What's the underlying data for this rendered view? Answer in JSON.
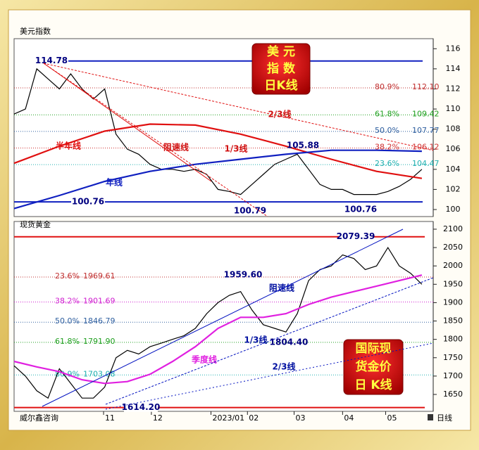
{
  "chart_data": [
    {
      "type": "line",
      "title": "美元指数",
      "badge": [
        "美 元",
        "指 数",
        "日K线"
      ],
      "xlim": [
        0,
        185
      ],
      "ylim": [
        99.3,
        117
      ],
      "yticks": [
        100,
        102,
        104,
        106,
        108,
        110,
        112,
        114,
        116
      ],
      "series": [
        {
          "color": "#000000",
          "x": [
            0,
            5,
            10,
            15,
            20,
            25,
            30,
            35,
            40,
            45,
            50,
            55,
            60,
            65,
            70,
            75,
            80,
            85,
            90,
            95,
            100,
            105,
            110,
            115,
            120,
            125,
            130,
            135,
            140,
            145,
            150,
            155,
            160,
            165,
            170,
            175,
            180
          ],
          "values": [
            109.5,
            110,
            114,
            113,
            112,
            113.5,
            112,
            111,
            112,
            107.5,
            106,
            105.5,
            104.5,
            104,
            104,
            103.8,
            104,
            103.5,
            102,
            101.8,
            101.5,
            102.5,
            103.5,
            104.5,
            105,
            105.5,
            104,
            102.5,
            102,
            102,
            101.5,
            101.5,
            101.5,
            101.8,
            102.3,
            103,
            104
          ]
        },
        {
          "name": "半年线",
          "color": "#e01010",
          "x": [
            0,
            20,
            40,
            60,
            80,
            100,
            120,
            140,
            160,
            180
          ],
          "values": [
            104.6,
            106.3,
            107.8,
            108.5,
            108.4,
            107.5,
            106.3,
            105,
            103.8,
            103.1
          ]
        },
        {
          "name": "年线",
          "color": "#1020c0",
          "x": [
            0,
            20,
            40,
            60,
            80,
            100,
            120,
            140,
            160,
            180
          ],
          "values": [
            100.1,
            101.4,
            102.8,
            103.8,
            104.5,
            105,
            105.5,
            105.9,
            105.9,
            105.8
          ]
        }
      ],
      "key_levels": [
        {
          "value": 114.78,
          "label": "114.78"
        },
        {
          "value": 100.76,
          "label": "100.76"
        }
      ],
      "key_color": "#1020c0",
      "points": [
        {
          "value": 100.79,
          "label": "100.79"
        },
        {
          "value": 105.88,
          "label": "105.88"
        },
        {
          "value": 100.76,
          "label": "100.76"
        }
      ],
      "fib_levels": [
        {
          "ratio": "80.9%",
          "value": 112.1,
          "label": "112.10",
          "color": "#c03030"
        },
        {
          "ratio": "61.8%",
          "value": 109.42,
          "label": "109.42",
          "color": "#20a020"
        },
        {
          "ratio": "50.0%",
          "value": 107.77,
          "label": "107.77",
          "color": "#3060a0"
        },
        {
          "ratio": "38.2%",
          "value": 106.12,
          "label": "106.12",
          "color": "#d03030"
        },
        {
          "ratio": "23.6%",
          "value": 104.47,
          "label": "104.47",
          "color": "#20b0b0"
        }
      ],
      "annotations": [
        {
          "text": "阻速线",
          "color": "#d01010"
        },
        {
          "text": "1/3线",
          "color": "#d01010"
        },
        {
          "text": "2/3线",
          "color": "#d01010"
        }
      ]
    },
    {
      "type": "line",
      "title": "现货黄金",
      "badge": [
        "国际现",
        "货金价",
        "日 K线"
      ],
      "xlim": [
        0,
        185
      ],
      "ylim": [
        1604,
        2121
      ],
      "yticks": [
        1650,
        1700,
        1750,
        1800,
        1850,
        1900,
        1950,
        2000,
        2050,
        2100
      ],
      "xticks": [
        {
          "value": 39.5,
          "label": "11"
        },
        {
          "value": 60.6,
          "label": "12"
        },
        {
          "value": 86.9,
          "label": "2023/01"
        },
        {
          "value": 103,
          "label": "02"
        },
        {
          "value": 123.6,
          "label": "03"
        },
        {
          "value": 145,
          "label": "04"
        },
        {
          "value": 164,
          "label": "05"
        }
      ],
      "series": [
        {
          "color": "#000000",
          "x": [
            0,
            5,
            10,
            15,
            20,
            25,
            30,
            35,
            40,
            45,
            50,
            55,
            60,
            65,
            70,
            75,
            80,
            85,
            90,
            95,
            100,
            105,
            110,
            115,
            120,
            125,
            130,
            135,
            140,
            145,
            150,
            155,
            160,
            165,
            170,
            175,
            180
          ],
          "values": [
            1728,
            1700,
            1660,
            1640,
            1720,
            1680,
            1640,
            1640,
            1670,
            1750,
            1770,
            1760,
            1780,
            1790,
            1800,
            1810,
            1830,
            1870,
            1900,
            1920,
            1930,
            1880,
            1840,
            1830,
            1820,
            1870,
            1960,
            1990,
            2000,
            2030,
            2020,
            1990,
            2000,
            2050,
            2000,
            1980,
            1950
          ]
        },
        {
          "name": "季度线",
          "color": "#e020e0",
          "x": [
            0,
            10,
            20,
            30,
            40,
            50,
            60,
            70,
            80,
            90,
            100,
            110,
            120,
            130,
            140,
            150,
            160,
            170,
            180
          ],
          "values": [
            1740,
            1725,
            1712,
            1690,
            1680,
            1685,
            1705,
            1740,
            1780,
            1830,
            1860,
            1860,
            1870,
            1895,
            1915,
            1930,
            1945,
            1960,
            1975
          ]
        }
      ],
      "key_levels": [
        {
          "value": 2079.39,
          "label": "2079.39"
        },
        {
          "value": 1614.2,
          "label": "1614.20"
        }
      ],
      "key_color": "#e01010",
      "points": [
        {
          "value": 1959.6,
          "label": "1959.60"
        },
        {
          "value": 1804.4,
          "label": "1804.40"
        }
      ],
      "fib_levels": [
        {
          "ratio": "23.6%",
          "value": 1969.61,
          "label": "1969.61",
          "color": "#c03030"
        },
        {
          "ratio": "38.2%",
          "value": 1901.69,
          "label": "1901.69",
          "color": "#d020d0"
        },
        {
          "ratio": "50.0%",
          "value": 1846.79,
          "label": "1846.79",
          "color": "#3060a0"
        },
        {
          "ratio": "61.8%",
          "value": 1791.9,
          "label": "1791.90",
          "color": "#20a020"
        },
        {
          "ratio": "80.9%",
          "value": 1703.08,
          "label": "1703.08",
          "color": "#20b0b0"
        }
      ],
      "annotations": [
        {
          "text": "阻速线",
          "color": "#0010a0"
        },
        {
          "text": "1/3线",
          "color": "#0010a0"
        },
        {
          "text": "2/3线",
          "color": "#0010a0"
        }
      ]
    }
  ],
  "footer": {
    "source": "威尔鑫咨询",
    "period": "日线"
  }
}
